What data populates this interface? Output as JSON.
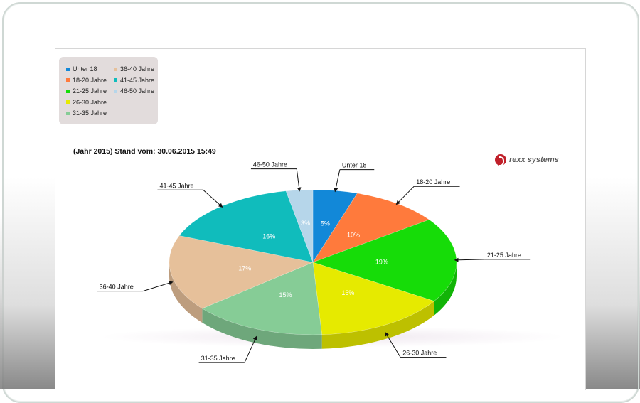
{
  "chart_data": {
    "type": "pie",
    "title": "(Jahr 2015) Stand vom: 30.06.2015 15:49",
    "legend_position": "top-left",
    "categories": [
      "Unter 18",
      "18-20 Jahre",
      "21-25 Jahre",
      "26-30 Jahre",
      "31-35 Jahre",
      "36-40 Jahre",
      "41-45 Jahre",
      "46-50 Jahre"
    ],
    "values": [
      5,
      10,
      19,
      15,
      15,
      17,
      16,
      3
    ],
    "value_labels": [
      "5%",
      "10%",
      "19%",
      "15%",
      "15%",
      "17%",
      "16%",
      "3%"
    ],
    "colors": [
      "#1288d8",
      "#ff7a3c",
      "#16dc08",
      "#e6ea00",
      "#86cc96",
      "#e6c09a",
      "#10bcbc",
      "#b6d6ea"
    ],
    "legend": [
      {
        "label": "Unter 18",
        "color": "#1288d8"
      },
      {
        "label": "18-20 Jahre",
        "color": "#ff7a3c"
      },
      {
        "label": "21-25 Jahre",
        "color": "#16dc08"
      },
      {
        "label": "26-30 Jahre",
        "color": "#e6ea00"
      },
      {
        "label": "31-35 Jahre",
        "color": "#86cc96"
      },
      {
        "label": "36-40 Jahre",
        "color": "#e6c09a"
      },
      {
        "label": "41-45 Jahre",
        "color": "#10bcbc"
      },
      {
        "label": "46-50 Jahre",
        "color": "#b6d6ea"
      }
    ]
  },
  "logo": {
    "text": "rexx systems",
    "color": "#c0202a"
  }
}
